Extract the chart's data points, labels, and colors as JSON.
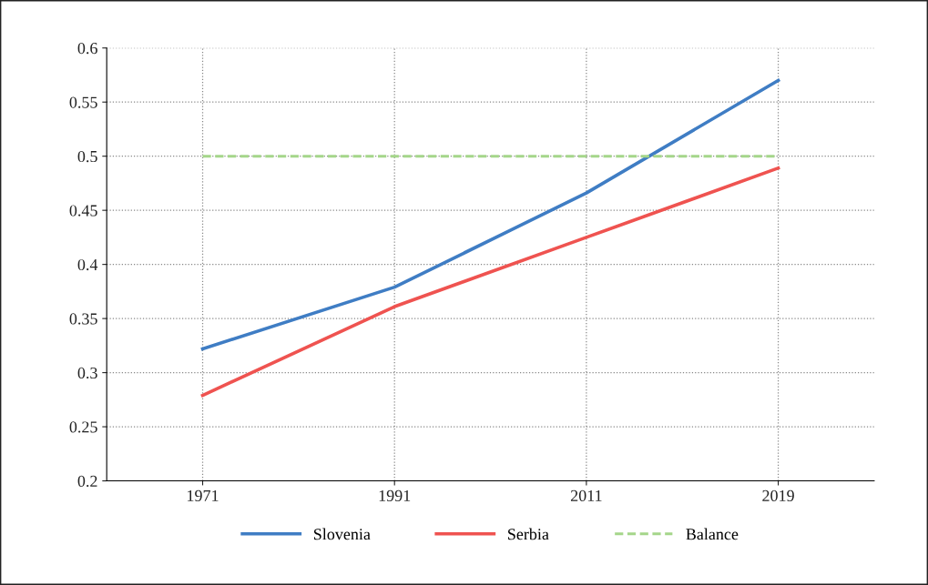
{
  "chart_data": {
    "type": "line",
    "categories": [
      "1971",
      "1991",
      "2011",
      "2019"
    ],
    "series": [
      {
        "name": "Slovenia",
        "color": "#3f7dc4",
        "values": [
          0.322,
          0.379,
          0.466,
          0.57
        ]
      },
      {
        "name": "Serbia",
        "color": "#ef5350",
        "values": [
          0.279,
          0.361,
          0.425,
          0.489
        ]
      },
      {
        "name": "Balance",
        "color": "#a5d68a",
        "values": [
          0.5,
          0.5,
          0.5,
          0.5
        ],
        "line_style": "dashed"
      }
    ],
    "ylim": [
      0.2,
      0.6
    ],
    "yticks": [
      0.2,
      0.25,
      0.3,
      0.35,
      0.4,
      0.45,
      0.5,
      0.55,
      0.6
    ],
    "grid": true,
    "legend": "bottom",
    "marker": "none",
    "line_style": "solid"
  }
}
